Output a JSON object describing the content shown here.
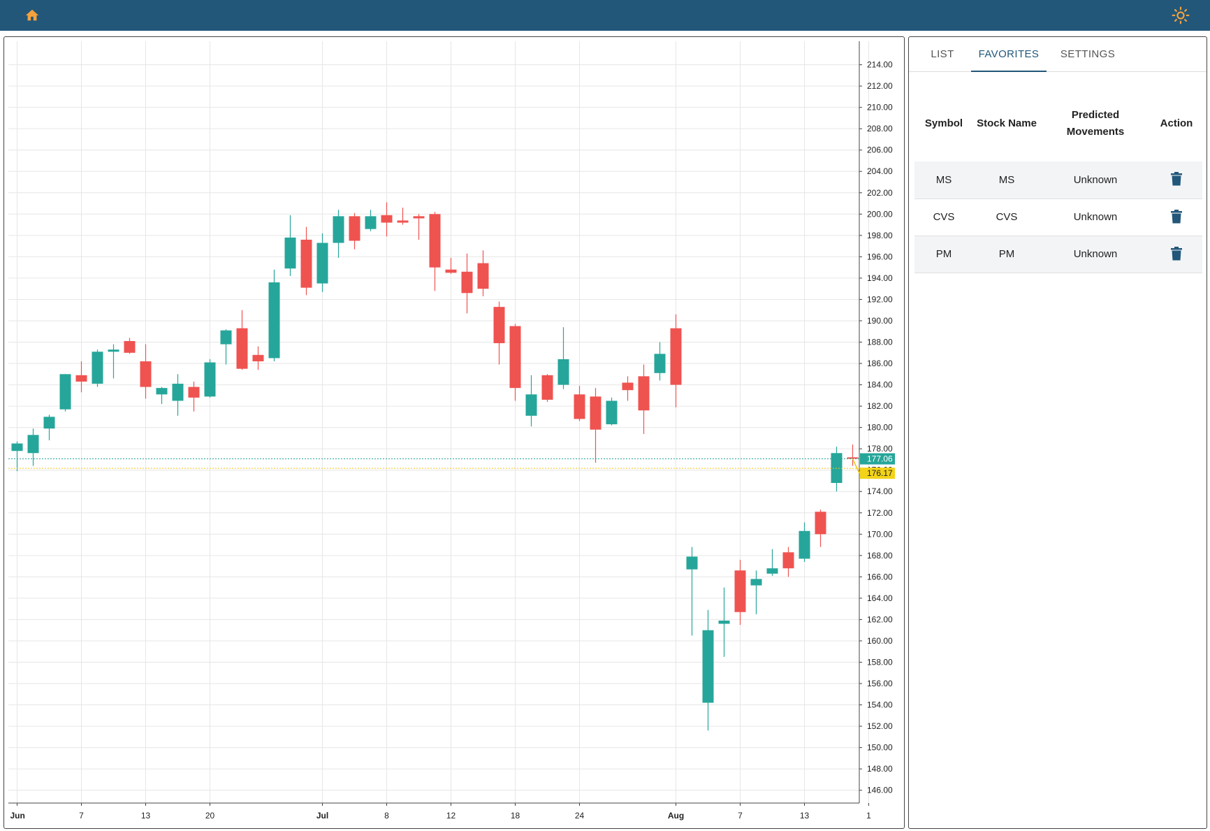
{
  "header": {
    "home_icon": "home-icon",
    "theme_icon": "sun-icon",
    "home_color": "#f4a23c",
    "bar_color": "#22577a"
  },
  "tabs": [
    {
      "label": "LIST",
      "active": false
    },
    {
      "label": "FAVORITES",
      "active": true
    },
    {
      "label": "SETTINGS",
      "active": false
    }
  ],
  "favorites": {
    "columns": [
      "Symbol",
      "Stock Name",
      "Predicted Movements",
      "Action"
    ],
    "rows": [
      {
        "symbol": "MS",
        "name": "MS",
        "prediction": "Unknown",
        "action_icon": "trash-icon"
      },
      {
        "symbol": "CVS",
        "name": "CVS",
        "prediction": "Unknown",
        "action_icon": "trash-icon"
      },
      {
        "symbol": "PM",
        "name": "PM",
        "prediction": "Unknown",
        "action_icon": "trash-icon"
      }
    ]
  },
  "chart_data": {
    "type": "candlestick",
    "up_color": "#26a69a",
    "down_color": "#ef5350",
    "ylim": [
      144.8,
      216.2
    ],
    "y_ticks": [
      "146.00",
      "148.00",
      "150.00",
      "152.00",
      "154.00",
      "156.00",
      "158.00",
      "160.00",
      "162.00",
      "164.00",
      "166.00",
      "168.00",
      "170.00",
      "172.00",
      "174.00",
      "176.00",
      "178.00",
      "180.00",
      "182.00",
      "184.00",
      "186.00",
      "188.00",
      "190.00",
      "192.00",
      "194.00",
      "196.00",
      "198.00",
      "200.00",
      "202.00",
      "204.00",
      "206.00",
      "208.00",
      "210.00",
      "212.00",
      "214.00"
    ],
    "x_labels": [
      {
        "label": "Jun",
        "index": 0,
        "bold": true
      },
      {
        "label": "7",
        "index": 4
      },
      {
        "label": "13",
        "index": 8
      },
      {
        "label": "20",
        "index": 12
      },
      {
        "label": "Jul",
        "index": 19,
        "bold": true
      },
      {
        "label": "8",
        "index": 23
      },
      {
        "label": "12",
        "index": 27
      },
      {
        "label": "18",
        "index": 31
      },
      {
        "label": "24",
        "index": 35
      },
      {
        "label": "Aug",
        "index": 41,
        "bold": true
      },
      {
        "label": "7",
        "index": 45
      },
      {
        "label": "13",
        "index": 49
      },
      {
        "label": "1",
        "index": 53
      }
    ],
    "last_price": "177.06",
    "prev_close": "176.17",
    "last_price_value": 177.06,
    "prev_close_value": 176.17,
    "candles": [
      {
        "o": 177.8,
        "h": 178.7,
        "l": 175.9,
        "c": 178.5
      },
      {
        "o": 177.6,
        "h": 179.9,
        "l": 176.4,
        "c": 179.3
      },
      {
        "o": 179.9,
        "h": 181.2,
        "l": 178.8,
        "c": 181.0
      },
      {
        "o": 181.7,
        "h": 185.0,
        "l": 181.5,
        "c": 185.0
      },
      {
        "o": 184.9,
        "h": 186.2,
        "l": 183.3,
        "c": 184.3
      },
      {
        "o": 184.1,
        "h": 187.3,
        "l": 183.8,
        "c": 187.1
      },
      {
        "o": 187.1,
        "h": 187.8,
        "l": 184.6,
        "c": 187.3
      },
      {
        "o": 188.1,
        "h": 188.4,
        "l": 186.9,
        "c": 187.0
      },
      {
        "o": 186.2,
        "h": 187.8,
        "l": 182.7,
        "c": 183.8
      },
      {
        "o": 183.1,
        "h": 183.8,
        "l": 182.2,
        "c": 183.7
      },
      {
        "o": 182.5,
        "h": 185.0,
        "l": 181.1,
        "c": 184.1
      },
      {
        "o": 183.8,
        "h": 184.3,
        "l": 181.5,
        "c": 182.8
      },
      {
        "o": 182.9,
        "h": 186.4,
        "l": 182.8,
        "c": 186.1
      },
      {
        "o": 187.8,
        "h": 189.2,
        "l": 185.9,
        "c": 189.1
      },
      {
        "o": 189.3,
        "h": 191.0,
        "l": 185.4,
        "c": 185.5
      },
      {
        "o": 186.8,
        "h": 187.6,
        "l": 185.4,
        "c": 186.2
      },
      {
        "o": 186.5,
        "h": 194.8,
        "l": 186.2,
        "c": 193.6
      },
      {
        "o": 194.9,
        "h": 199.9,
        "l": 194.2,
        "c": 197.8
      },
      {
        "o": 197.6,
        "h": 198.8,
        "l": 192.4,
        "c": 193.1
      },
      {
        "o": 193.5,
        "h": 198.2,
        "l": 192.7,
        "c": 197.3
      },
      {
        "o": 197.3,
        "h": 200.4,
        "l": 195.9,
        "c": 199.8
      },
      {
        "o": 199.8,
        "h": 200.1,
        "l": 196.7,
        "c": 197.5
      },
      {
        "o": 198.6,
        "h": 200.4,
        "l": 198.4,
        "c": 199.8
      },
      {
        "o": 199.9,
        "h": 201.1,
        "l": 197.9,
        "c": 199.2
      },
      {
        "o": 199.4,
        "h": 200.6,
        "l": 199.0,
        "c": 199.2
      },
      {
        "o": 199.8,
        "h": 200.0,
        "l": 197.6,
        "c": 199.6
      },
      {
        "o": 200.0,
        "h": 200.2,
        "l": 192.8,
        "c": 195.0
      },
      {
        "o": 194.8,
        "h": 195.9,
        "l": 194.4,
        "c": 194.5
      },
      {
        "o": 194.6,
        "h": 196.3,
        "l": 190.7,
        "c": 192.6
      },
      {
        "o": 195.4,
        "h": 196.6,
        "l": 192.3,
        "c": 193.0
      },
      {
        "o": 191.3,
        "h": 191.8,
        "l": 185.9,
        "c": 187.9
      },
      {
        "o": 189.5,
        "h": 189.7,
        "l": 182.5,
        "c": 183.7
      },
      {
        "o": 181.1,
        "h": 184.9,
        "l": 180.1,
        "c": 183.1
      },
      {
        "o": 184.9,
        "h": 185.0,
        "l": 182.4,
        "c": 182.6
      },
      {
        "o": 184.0,
        "h": 189.4,
        "l": 183.6,
        "c": 186.4
      },
      {
        "o": 183.1,
        "h": 183.9,
        "l": 180.6,
        "c": 180.8
      },
      {
        "o": 182.9,
        "h": 183.7,
        "l": 176.7,
        "c": 179.8
      },
      {
        "o": 180.3,
        "h": 182.8,
        "l": 180.2,
        "c": 182.5
      },
      {
        "o": 184.2,
        "h": 184.8,
        "l": 182.5,
        "c": 183.5
      },
      {
        "o": 184.8,
        "h": 185.9,
        "l": 179.4,
        "c": 181.6
      },
      {
        "o": 185.1,
        "h": 188.0,
        "l": 184.4,
        "c": 186.9
      },
      {
        "o": 189.3,
        "h": 190.6,
        "l": 181.9,
        "c": 184.0
      },
      {
        "o": 166.7,
        "h": 168.8,
        "l": 160.5,
        "c": 167.9
      },
      {
        "o": 154.2,
        "h": 162.9,
        "l": 151.6,
        "c": 161.0
      },
      {
        "o": 161.6,
        "h": 165.0,
        "l": 158.5,
        "c": 161.9
      },
      {
        "o": 166.6,
        "h": 167.6,
        "l": 161.5,
        "c": 162.7
      },
      {
        "o": 165.2,
        "h": 166.6,
        "l": 162.5,
        "c": 165.8
      },
      {
        "o": 166.3,
        "h": 168.6,
        "l": 166.1,
        "c": 166.8
      },
      {
        "o": 168.3,
        "h": 168.8,
        "l": 166.0,
        "c": 166.8
      },
      {
        "o": 167.7,
        "h": 171.1,
        "l": 167.4,
        "c": 170.3
      },
      {
        "o": 172.1,
        "h": 172.3,
        "l": 168.8,
        "c": 170.0
      },
      {
        "o": 174.8,
        "h": 178.2,
        "l": 174.0,
        "c": 177.6
      },
      {
        "o": 177.2,
        "h": 178.4,
        "l": 176.4,
        "c": 177.1
      }
    ]
  }
}
